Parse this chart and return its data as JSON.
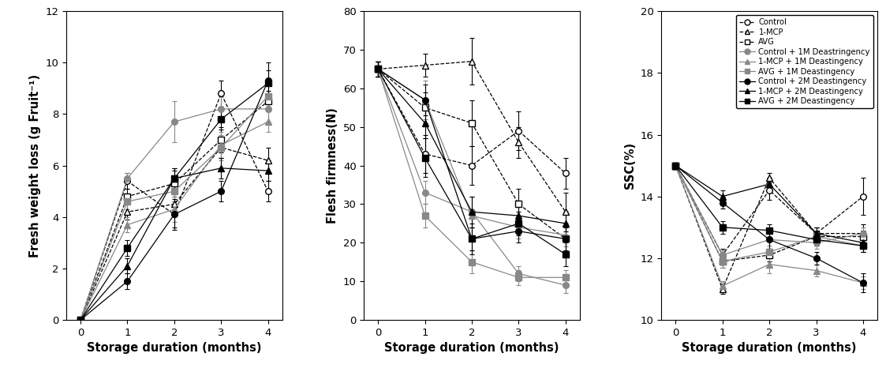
{
  "x": [
    0,
    1,
    2,
    3,
    4
  ],
  "fw": {
    "Control": [
      0,
      5.4,
      4.1,
      8.8,
      5.0
    ],
    "1-MCP": [
      0,
      4.2,
      4.5,
      6.7,
      6.2
    ],
    "AVG": [
      0,
      4.8,
      5.3,
      7.0,
      8.5
    ],
    "Control+1M": [
      0,
      5.5,
      7.7,
      8.2,
      8.2
    ],
    "1-MCP+1M": [
      0,
      3.7,
      4.3,
      6.8,
      7.7
    ],
    "AVG+1M": [
      0,
      4.6,
      5.0,
      6.7,
      8.7
    ],
    "Control+2M": [
      0,
      1.5,
      4.1,
      5.0,
      9.3
    ],
    "1-MCP+2M": [
      0,
      2.1,
      5.5,
      5.9,
      5.8
    ],
    "AVG+2M": [
      0,
      2.8,
      5.5,
      7.8,
      9.2
    ]
  },
  "fw_err": {
    "Control": [
      0,
      0.3,
      0.5,
      0.5,
      0.4
    ],
    "1-MCP": [
      0,
      0.3,
      0.4,
      0.4,
      0.5
    ],
    "AVG": [
      0,
      0.3,
      0.5,
      0.5,
      0.4
    ],
    "Control+1M": [
      0,
      0.2,
      0.8,
      0.5,
      0.5
    ],
    "1-MCP+1M": [
      0,
      0.3,
      0.5,
      0.5,
      0.4
    ],
    "AVG+1M": [
      0,
      0.3,
      0.4,
      0.5,
      0.5
    ],
    "Control+2M": [
      0,
      0.3,
      0.6,
      0.4,
      0.7
    ],
    "1-MCP+2M": [
      0,
      0.3,
      0.4,
      0.4,
      0.4
    ],
    "AVG+2M": [
      0,
      0.3,
      0.4,
      0.4,
      0.5
    ]
  },
  "ff": {
    "Control": [
      65,
      43,
      40,
      49,
      38
    ],
    "1-MCP": [
      65,
      66,
      67,
      46,
      28
    ],
    "AVG": [
      65,
      55,
      51,
      30,
      21
    ],
    "Control+1M": [
      65,
      33,
      28,
      12,
      9
    ],
    "1-MCP+1M": [
      65,
      57,
      27,
      24,
      22
    ],
    "AVG+1M": [
      65,
      27,
      15,
      11,
      11
    ],
    "Control+2M": [
      65,
      57,
      21,
      23,
      21
    ],
    "1-MCP+2M": [
      65,
      51,
      28,
      27,
      25
    ],
    "AVG+2M": [
      65,
      42,
      21,
      25,
      17
    ]
  },
  "ff_err": {
    "Control": [
      2,
      5,
      5,
      5,
      4
    ],
    "1-MCP": [
      2,
      3,
      6,
      4,
      5
    ],
    "AVG": [
      2,
      4,
      6,
      4,
      4
    ],
    "Control+1M": [
      2,
      3,
      4,
      2,
      2
    ],
    "1-MCP+1M": [
      2,
      5,
      5,
      3,
      3
    ],
    "AVG+1M": [
      2,
      3,
      3,
      2,
      2
    ],
    "Control+2M": [
      2,
      4,
      4,
      3,
      3
    ],
    "1-MCP+2M": [
      2,
      4,
      4,
      3,
      3
    ],
    "AVG+2M": [
      2,
      5,
      3,
      3,
      3
    ]
  },
  "ssc": {
    "Control": [
      15.0,
      12.1,
      14.2,
      12.8,
      14.0
    ],
    "1-MCP": [
      15.0,
      11.0,
      14.6,
      12.8,
      12.8
    ],
    "AVG": [
      15.0,
      11.9,
      12.1,
      12.7,
      12.7
    ],
    "Control+1M": [
      15.0,
      12.1,
      12.6,
      12.5,
      12.8
    ],
    "1-MCP+1M": [
      15.0,
      11.1,
      11.8,
      11.6,
      11.2
    ],
    "AVG+1M": [
      15.0,
      11.9,
      12.2,
      12.7,
      12.4
    ],
    "Control+2M": [
      15.0,
      13.8,
      12.6,
      12.0,
      11.2
    ],
    "1-MCP+2M": [
      15.0,
      14.0,
      14.4,
      12.8,
      12.5
    ],
    "AVG+2M": [
      15.0,
      13.0,
      12.9,
      12.6,
      12.4
    ]
  },
  "ssc_err": {
    "Control": [
      0.1,
      0.2,
      0.3,
      0.2,
      0.6
    ],
    "1-MCP": [
      0.1,
      0.15,
      0.15,
      0.2,
      0.3
    ],
    "AVG": [
      0.1,
      0.2,
      0.2,
      0.2,
      0.2
    ],
    "Control+1M": [
      0.1,
      0.15,
      0.3,
      0.2,
      0.2
    ],
    "1-MCP+1M": [
      0.1,
      0.15,
      0.3,
      0.2,
      0.2
    ],
    "AVG+1M": [
      0.1,
      0.2,
      0.2,
      0.2,
      0.2
    ],
    "Control+2M": [
      0.1,
      0.2,
      0.3,
      0.2,
      0.3
    ],
    "1-MCP+2M": [
      0.1,
      0.2,
      0.2,
      0.2,
      0.3
    ],
    "AVG+2M": [
      0.1,
      0.2,
      0.2,
      0.2,
      0.2
    ]
  },
  "series_styles": {
    "Control": {
      "color": "#000000",
      "mfc": "white",
      "marker": "o",
      "linestyle": "--",
      "markersize": 5.5
    },
    "1-MCP": {
      "color": "#000000",
      "mfc": "white",
      "marker": "^",
      "linestyle": "--",
      "markersize": 5.5
    },
    "AVG": {
      "color": "#000000",
      "mfc": "white",
      "marker": "s",
      "linestyle": "--",
      "markersize": 5.5
    },
    "Control+1M": {
      "color": "#888888",
      "mfc": "#888888",
      "marker": "o",
      "linestyle": "-",
      "markersize": 5.5
    },
    "1-MCP+1M": {
      "color": "#888888",
      "mfc": "#888888",
      "marker": "^",
      "linestyle": "-",
      "markersize": 5.5
    },
    "AVG+1M": {
      "color": "#888888",
      "mfc": "#888888",
      "marker": "s",
      "linestyle": "-",
      "markersize": 5.5
    },
    "Control+2M": {
      "color": "#000000",
      "mfc": "#000000",
      "marker": "o",
      "linestyle": "-",
      "markersize": 5.5
    },
    "1-MCP+2M": {
      "color": "#000000",
      "mfc": "#000000",
      "marker": "^",
      "linestyle": "-",
      "markersize": 5.5
    },
    "AVG+2M": {
      "color": "#000000",
      "mfc": "#000000",
      "marker": "s",
      "linestyle": "-",
      "markersize": 5.5
    }
  },
  "fw_ylim": [
    0,
    12
  ],
  "fw_yticks": [
    0,
    2,
    4,
    6,
    8,
    10,
    12
  ],
  "fw_ylabel": "Fresh weight loss (g Fruit⁻¹)",
  "ff_ylim": [
    0,
    80
  ],
  "ff_yticks": [
    0,
    10,
    20,
    30,
    40,
    50,
    60,
    70,
    80
  ],
  "ff_ylabel": "Flesh firmness(N)",
  "ssc_ylim": [
    10,
    20
  ],
  "ssc_yticks": [
    10,
    12,
    14,
    16,
    18,
    20
  ],
  "ssc_ylabel": "SSC(%)",
  "xlabel": "Storage duration (months)",
  "xticks": [
    0,
    1,
    2,
    3,
    4
  ]
}
